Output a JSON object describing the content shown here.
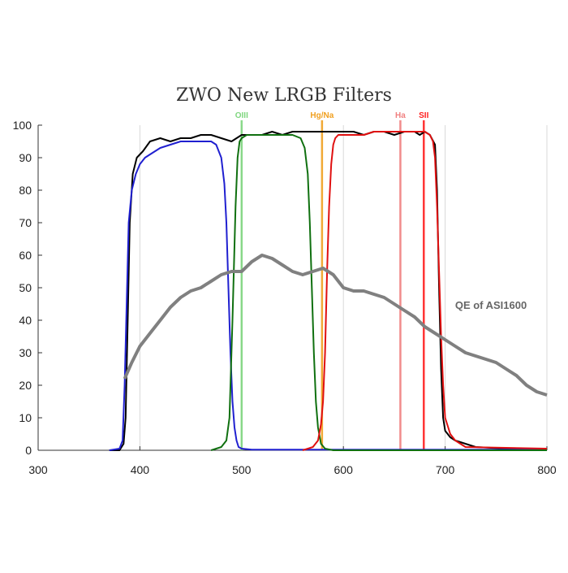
{
  "chart_data": {
    "type": "line",
    "title": "ZWO New LRGB Filters",
    "xlabel": "",
    "ylabel": "",
    "xlim": [
      300,
      800
    ],
    "ylim": [
      0,
      100
    ],
    "x_ticks": [
      300,
      400,
      500,
      600,
      700,
      800
    ],
    "y_ticks": [
      0,
      10,
      20,
      30,
      40,
      50,
      60,
      70,
      80,
      90,
      100
    ],
    "grid": "vertical gridlines at x ticks",
    "annotations": [
      {
        "text": "QE of ASI1600",
        "x": 745,
        "y": 35,
        "color": "#666666"
      }
    ],
    "emission_lines": [
      {
        "name": "OIII",
        "x": 500,
        "color": "#7fd67f"
      },
      {
        "name": "Hg/Na",
        "x": 579,
        "color": "#f0a020"
      },
      {
        "name": "Ha",
        "x": 656,
        "color": "#f08080"
      },
      {
        "name": "SII",
        "x": 679,
        "color": "#ff2020"
      }
    ],
    "series": [
      {
        "color": "#000000",
        "x": [
          370,
          380,
          384,
          386,
          388,
          390,
          393,
          397,
          403,
          410,
          420,
          430,
          440,
          450,
          460,
          470,
          480,
          490,
          500,
          510,
          520,
          530,
          540,
          550,
          560,
          570,
          580,
          590,
          600,
          610,
          620,
          630,
          640,
          650,
          660,
          670,
          675,
          680,
          685,
          690,
          692,
          694,
          696,
          698,
          700,
          705,
          710,
          720,
          730,
          760,
          800
        ],
        "y": [
          0,
          0,
          2,
          10,
          40,
          70,
          85,
          90,
          92,
          95,
          96,
          95,
          96,
          96,
          97,
          97,
          96,
          95,
          97,
          97,
          97,
          98,
          97,
          98,
          98,
          98,
          98,
          98,
          98,
          98,
          97,
          98,
          98,
          97,
          98,
          98,
          97,
          98,
          97,
          94,
          80,
          50,
          25,
          10,
          6,
          4,
          3,
          2,
          1,
          0.5,
          0.3
        ]
      },
      {
        "color": "#2020d0",
        "x": [
          370,
          380,
          383,
          385,
          387,
          389,
          392,
          396,
          400,
          405,
          410,
          420,
          430,
          440,
          450,
          460,
          470,
          475,
          480,
          483,
          485,
          487,
          489,
          491,
          493,
          495,
          497,
          500,
          510,
          800
        ],
        "y": [
          0,
          0.5,
          3,
          20,
          45,
          70,
          80,
          85,
          88,
          90,
          91,
          93,
          94,
          95,
          95,
          95,
          95,
          94,
          90,
          82,
          70,
          50,
          30,
          15,
          7,
          3,
          1,
          0.5,
          0.2,
          0.2
        ]
      },
      {
        "color": "#107010",
        "x": [
          470,
          480,
          485,
          488,
          491,
          494,
          496,
          498,
          500,
          505,
          510,
          520,
          530,
          540,
          550,
          558,
          562,
          565,
          567,
          569,
          571,
          573,
          575,
          578,
          582,
          590,
          800
        ],
        "y": [
          0,
          1,
          3,
          10,
          40,
          75,
          90,
          95,
          96,
          97,
          97,
          97,
          97,
          97,
          97,
          96,
          93,
          85,
          70,
          50,
          30,
          15,
          7,
          2,
          0.5,
          0,
          0
        ]
      },
      {
        "color": "#e01010",
        "x": [
          560,
          570,
          575,
          578,
          580,
          582,
          584,
          586,
          588,
          590,
          592,
          595,
          600,
          610,
          620,
          630,
          640,
          650,
          660,
          670,
          675,
          680,
          685,
          688,
          690,
          692,
          694,
          696,
          698,
          700,
          705,
          710,
          720,
          800
        ],
        "y": [
          0,
          1,
          3,
          8,
          15,
          30,
          55,
          75,
          88,
          94,
          96,
          97,
          97,
          97,
          97,
          98,
          98,
          98,
          98,
          98,
          98,
          98,
          97,
          95,
          90,
          75,
          55,
          35,
          20,
          10,
          5,
          3,
          1,
          0.5
        ]
      },
      {
        "name": "QE of ASI1600",
        "color": "#808080",
        "x": [
          385,
          392,
          400,
          410,
          420,
          430,
          440,
          450,
          460,
          470,
          480,
          490,
          500,
          510,
          520,
          530,
          540,
          550,
          560,
          570,
          580,
          590,
          600,
          610,
          620,
          630,
          640,
          650,
          660,
          670,
          680,
          690,
          700,
          710,
          720,
          730,
          740,
          750,
          760,
          770,
          780,
          790,
          800
        ],
        "y": [
          22,
          27,
          32,
          36,
          40,
          44,
          47,
          49,
          50,
          52,
          54,
          55,
          55,
          58,
          60,
          59,
          57,
          55,
          54,
          55,
          56,
          54,
          50,
          49,
          49,
          48,
          47,
          45,
          43,
          41,
          38,
          36,
          34,
          32,
          30,
          29,
          28,
          27,
          25,
          23,
          20,
          18,
          17
        ]
      }
    ]
  }
}
